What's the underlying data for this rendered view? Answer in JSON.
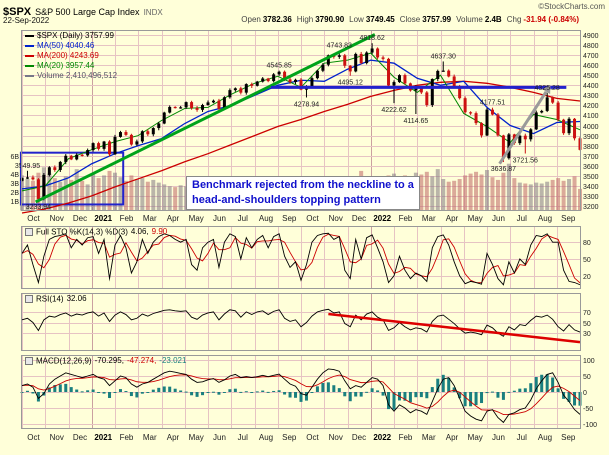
{
  "header": {
    "symbol": "$SPX",
    "name": "S&P 500 Large Cap Index",
    "exchange": "INDX",
    "date": "22-Sep-2022",
    "copyright": "©StockCharts.com",
    "stats": {
      "open": {
        "label": "Open",
        "value": "3782.36"
      },
      "high": {
        "label": "High",
        "value": "3790.90"
      },
      "low": {
        "label": "Low",
        "value": "3749.45"
      },
      "close": {
        "label": "Close",
        "value": "3757.99"
      },
      "volume": {
        "label": "Volume",
        "value": "2.4B"
      },
      "chg": {
        "label": "Chg",
        "value": "-31.94 (-0.84%)"
      }
    }
  },
  "legend": {
    "spx": "$SPX (Daily) 3757.99",
    "ma50": "MA(50) 4040.46",
    "ma200": "MA(200) 4243.69",
    "ma20": "MA(20) 3957.44",
    "volume": "Volume 2,410,496,512"
  },
  "annotation": {
    "line1": "Benchmark rejected from the neckline to a",
    "line2": "head-and-shoulders topping pattern"
  },
  "indicator_headers": {
    "sto": {
      "label": "Full STO %K(14,3) %D(3)",
      "k": "4.06,",
      "d": "9.90"
    },
    "rsi": {
      "label": "RSI(14)",
      "value": "32.06"
    },
    "macd": {
      "label": "MACD(12,26,9)",
      "m": "-70.295,",
      "s": "-47.274,",
      "h": "-23.021"
    }
  },
  "colors": {
    "background": "#ffffd9",
    "grid": "#e6c3c3",
    "grid_dark": "#caa0a0",
    "up": "#000000",
    "down": "#cc1111",
    "vol_up": "rgba(130,120,130,0.55)",
    "vol_down": "rgba(190,100,100,0.55)",
    "ma50": "#0022cc",
    "ma200": "#cc0000",
    "ma20": "#008800",
    "trendline": "#00a31a",
    "neckline": "#2222cc",
    "arrow": "#9a9a9a",
    "hist": "#1a7f7f",
    "annotation_text": "#1111cc"
  },
  "chart_data": {
    "type": "candlestick",
    "title": "$SPX S&P 500 Large Cap Index (Daily)",
    "x_axis": {
      "months": [
        "Oct",
        "Nov",
        "Dec",
        "2021",
        "Feb",
        "Mar",
        "Apr",
        "May",
        "Jun",
        "Jul",
        "Aug",
        "Sep",
        "Oct",
        "Nov",
        "Dec",
        "2022",
        "Feb",
        "Mar",
        "Apr",
        "May",
        "Jun",
        "Jul",
        "Aug",
        "Sep"
      ],
      "year_indices": [
        3,
        15
      ]
    },
    "y_axis": {
      "min": 3200,
      "max": 4900,
      "step": 100
    },
    "volume_ticks": [
      {
        "label": "6B",
        "value": 6
      },
      {
        "label": "4B",
        "value": 4
      },
      {
        "label": "3B",
        "value": 3
      },
      {
        "label": "2B",
        "value": 2
      },
      {
        "label": "1B",
        "value": 1
      }
    ],
    "sto_ticks": [
      80,
      50,
      20
    ],
    "rsi_ticks": [
      70,
      50,
      30
    ],
    "macd_ticks": [
      100,
      50,
      0,
      -50,
      -100
    ],
    "close": [
      3477,
      3484,
      3465,
      3270,
      3509,
      3585,
      3558,
      3638,
      3699,
      3663,
      3709,
      3703,
      3756,
      3825,
      3768,
      3841,
      3714,
      3887,
      3935,
      3907,
      3811,
      3842,
      3943,
      3913,
      3975,
      4020,
      4129,
      4185,
      4180,
      4181,
      4233,
      4174,
      4156,
      4204,
      4230,
      4247,
      4166,
      4281,
      4352,
      4370,
      4327,
      4412,
      4395,
      4437,
      4468,
      4442,
      4509,
      4535,
      4459,
      4433,
      4455,
      4357,
      4391,
      4471,
      4545,
      4605,
      4698,
      4683,
      4698,
      4595,
      4538,
      4712,
      4621,
      4726,
      4766,
      4677,
      4663,
      4398,
      4432,
      4501,
      4419,
      4349,
      4385,
      4329,
      4204,
      4463,
      4543,
      4546,
      4488,
      4393,
      4272,
      4132,
      4123,
      4024,
      3901,
      4158,
      4109,
      3901,
      3675,
      3912,
      3825,
      3899,
      3863,
      3962,
      4130,
      4145,
      4280,
      4228,
      4058,
      3924,
      4067,
      3873,
      3758
    ],
    "volume": [
      3.9,
      3.5,
      3.3,
      4.2,
      4.8,
      4.1,
      3.6,
      3.2,
      3.8,
      3.4,
      4.6,
      3.3,
      2.9,
      4.1,
      3.6,
      3.9,
      4.4,
      4.2,
      3.7,
      3.3,
      3.9,
      3.5,
      3.6,
      3.2,
      3.4,
      3.1,
      2.9,
      2.7,
      2.6,
      2.8,
      2.7,
      2.6,
      2.5,
      2.4,
      2.3,
      2.5,
      3.4,
      2.4,
      2.3,
      2.2,
      2.1,
      2.3,
      2.2,
      2.4,
      2.3,
      2.2,
      2.1,
      2.3,
      2.6,
      3.6,
      2.5,
      2.7,
      2.8,
      2.6,
      2.5,
      2.7,
      2.8,
      2.9,
      2.6,
      3.0,
      3.4,
      3.1,
      4.4,
      2.8,
      2.4,
      3.0,
      3.3,
      3.9,
      4.1,
      3.8,
      3.9,
      3.6,
      4.2,
      4.0,
      4.3,
      3.8,
      4.6,
      3.5,
      3.2,
      3.3,
      3.5,
      3.9,
      4.1,
      4.3,
      4.0,
      4.5,
      3.7,
      3.4,
      4.2,
      5.2,
      3.6,
      3.1,
      3.0,
      2.9,
      3.1,
      3.0,
      3.2,
      3.4,
      3.6,
      3.3,
      3.5,
      3.8,
      2.4
    ],
    "ma50": [
      3370,
      3400,
      3480,
      3620,
      3720,
      3800,
      3870,
      4020,
      4140,
      4200,
      4300,
      4400,
      4450,
      4440,
      4560,
      4650,
      4620,
      4470,
      4400,
      4440,
      4180,
      4000,
      3920,
      4030,
      4040
    ],
    "ma200": [
      3130,
      3170,
      3230,
      3300,
      3390,
      3470,
      3550,
      3640,
      3720,
      3810,
      3900,
      3990,
      4060,
      4140,
      4210,
      4290,
      4350,
      4400,
      4430,
      4440,
      4420,
      4380,
      4330,
      4270,
      4244
    ],
    "ma20": [
      3350,
      3400,
      3670,
      3760,
      3840,
      3900,
      4050,
      4170,
      4180,
      4310,
      4420,
      4490,
      4380,
      4620,
      4650,
      4720,
      4480,
      4330,
      4500,
      4120,
      3990,
      3830,
      4110,
      4060,
      3957
    ],
    "sto_k": [
      60,
      75,
      40,
      8,
      55,
      85,
      90,
      92,
      95,
      70,
      85,
      75,
      88,
      90,
      60,
      85,
      15,
      75,
      92,
      70,
      25,
      45,
      85,
      60,
      80,
      90,
      95,
      92,
      85,
      80,
      85,
      40,
      30,
      70,
      80,
      85,
      35,
      80,
      95,
      90,
      50,
      88,
      70,
      85,
      92,
      70,
      90,
      95,
      55,
      35,
      45,
      12,
      40,
      80,
      92,
      95,
      96,
      85,
      90,
      30,
      15,
      85,
      50,
      88,
      93,
      70,
      45,
      8,
      20,
      55,
      30,
      15,
      25,
      20,
      10,
      70,
      90,
      93,
      75,
      45,
      20,
      6,
      10,
      8,
      5,
      60,
      40,
      15,
      4,
      45,
      25,
      50,
      40,
      75,
      92,
      90,
      95,
      80,
      80,
      30,
      10,
      8,
      4
    ],
    "rsi": [
      55,
      58,
      50,
      35,
      55,
      62,
      60,
      65,
      68,
      62,
      66,
      64,
      68,
      70,
      62,
      68,
      52,
      64,
      70,
      65,
      55,
      58,
      66,
      62,
      67,
      70,
      73,
      74,
      72,
      71,
      72,
      60,
      56,
      64,
      68,
      70,
      55,
      66,
      74,
      72,
      60,
      70,
      65,
      70,
      72,
      65,
      71,
      74,
      58,
      52,
      55,
      42,
      50,
      62,
      70,
      73,
      75,
      68,
      70,
      48,
      42,
      64,
      55,
      66,
      70,
      60,
      55,
      35,
      40,
      50,
      42,
      36,
      40,
      38,
      32,
      52,
      62,
      64,
      56,
      48,
      38,
      30,
      32,
      30,
      27,
      45,
      40,
      30,
      24,
      42,
      36,
      46,
      44,
      54,
      62,
      60,
      64,
      56,
      42,
      34,
      46,
      36,
      32
    ],
    "macd": [
      20,
      25,
      15,
      -20,
      -5,
      25,
      40,
      50,
      60,
      55,
      50,
      45,
      50,
      55,
      45,
      40,
      20,
      35,
      50,
      45,
      25,
      15,
      25,
      30,
      40,
      50,
      60,
      65,
      62,
      58,
      55,
      40,
      30,
      32,
      38,
      42,
      30,
      38,
      50,
      55,
      45,
      48,
      45,
      48,
      52,
      48,
      52,
      56,
      40,
      25,
      18,
      -5,
      -10,
      15,
      40,
      60,
      72,
      70,
      65,
      35,
      10,
      20,
      15,
      30,
      45,
      40,
      20,
      -40,
      -60,
      -40,
      -50,
      -65,
      -55,
      -60,
      -70,
      -30,
      10,
      40,
      45,
      20,
      -20,
      -60,
      -75,
      -85,
      -90,
      -60,
      -55,
      -80,
      -95,
      -70,
      -65,
      -55,
      -50,
      -25,
      10,
      35,
      55,
      60,
      30,
      -10,
      -30,
      -55,
      -70
    ],
    "price_labels": [
      {
        "week": 1,
        "price": 3549.95,
        "text": "3549.95",
        "side": "above"
      },
      {
        "week": 3,
        "price": 3233.94,
        "text": "3233.94",
        "side": "below"
      },
      {
        "week": 47,
        "price": 4545.85,
        "text": "4545.85",
        "side": "above"
      },
      {
        "week": 52,
        "price": 4278.94,
        "text": "4278.94",
        "side": "below"
      },
      {
        "week": 58,
        "price": 4743.83,
        "text": "4743.83",
        "side": "above"
      },
      {
        "week": 60,
        "price": 4495.12,
        "text": "4495.12",
        "side": "below"
      },
      {
        "week": 64,
        "price": 4818.62,
        "text": "4818.62",
        "side": "above"
      },
      {
        "week": 68,
        "price": 4222.62,
        "text": "4222.62",
        "side": "below"
      },
      {
        "week": 72,
        "price": 4114.65,
        "text": "4114.65",
        "side": "below"
      },
      {
        "week": 77,
        "price": 4637.3,
        "text": "4637.30",
        "side": "above"
      },
      {
        "week": 86,
        "price": 4177.51,
        "text": "4177.51",
        "side": "above"
      },
      {
        "week": 88,
        "price": 3636.87,
        "text": "3636.87",
        "side": "below"
      },
      {
        "week": 92,
        "price": 3721.56,
        "text": "3721.56",
        "side": "below"
      },
      {
        "week": 96,
        "price": 4325.28,
        "text": "4325.28",
        "side": "above"
      }
    ],
    "drawings": {
      "green_trendline": {
        "from_week": 2.5,
        "from_price": 3240,
        "to_week": 64.5,
        "to_price": 4905
      },
      "blue_neckline": {
        "from_week": 45.5,
        "to_week": 99.5,
        "price": 4380
      },
      "blue_box": {
        "from_week": -0.2,
        "to_week": 18.5,
        "price_top": 3730,
        "price_bottom": 3215
      },
      "gray_arrow": {
        "from_week": 87.3,
        "from_price": 3620,
        "to_week": 95.8,
        "to_price": 4335
      },
      "rsi_red_trendline": {
        "from_week": 56,
        "from_value": 66,
        "to_week": 102,
        "to_value": 13
      }
    }
  }
}
